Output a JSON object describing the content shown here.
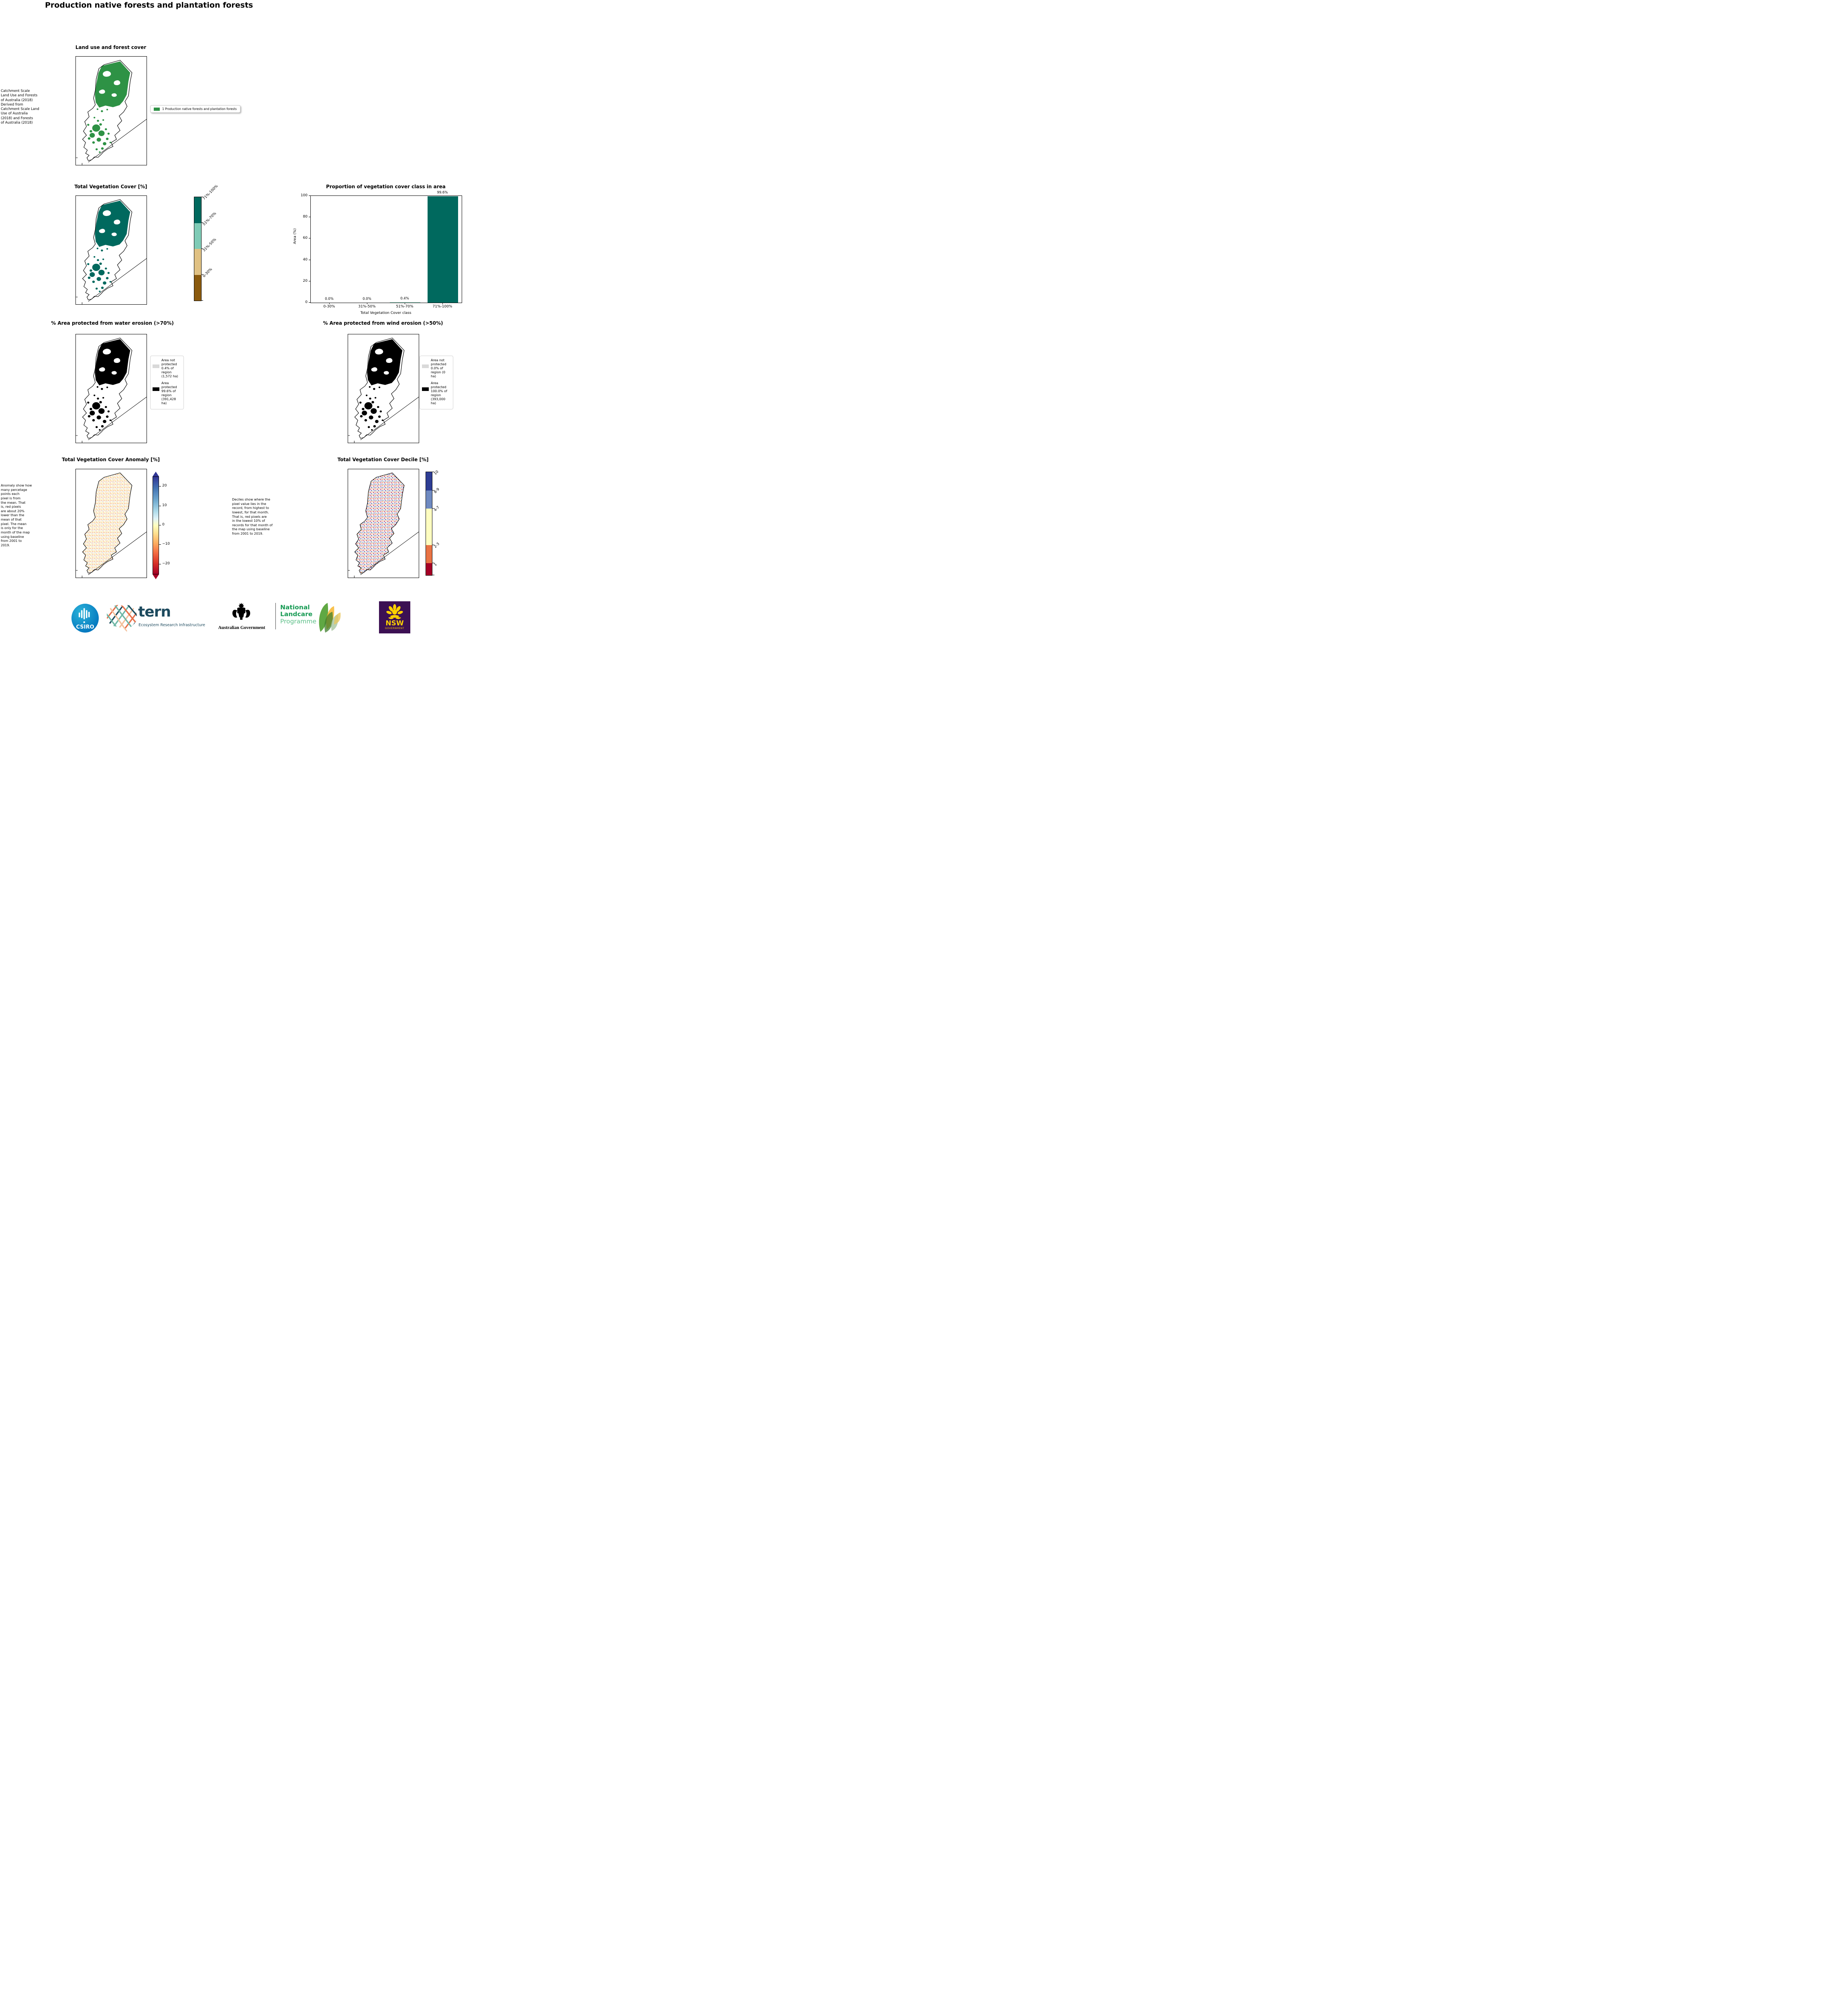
{
  "page": {
    "title": "Production native forests and plantation forests"
  },
  "landuse": {
    "title": "Land use and forest cover",
    "note": " Catchment Scale\nLand Use and Forests\nof Australia (2018)\nDerived from\nCatchment Scale Land\nUse of Australia\n(2018) and Forests\nof Australia (2018)",
    "legend_label": "1 Production native forests and plantation forests",
    "legend_color": "#2e9245"
  },
  "tvc": {
    "title": "Total Vegetation Cover [%]",
    "classes": [
      "71%-100%",
      "51%-70%",
      "31%-50%",
      "0-30%"
    ],
    "class_colors": [
      "#00695e",
      "#7fcbb6",
      "#e0c183",
      "#8a5a0e"
    ]
  },
  "chart_data": {
    "type": "bar",
    "title": "Proportion of vegetation cover class in area",
    "categories": [
      "0-30%",
      "31%-50%",
      "51%-70%",
      "71%-100%"
    ],
    "values": [
      0.0,
      0.0,
      0.4,
      99.6
    ],
    "value_labels": [
      "0.0%",
      "0.0%",
      "0.4%",
      "99.6%"
    ],
    "xlabel": "Total Vegetation Cover class",
    "ylabel": "Area (%)",
    "ylim": [
      0,
      100
    ],
    "yticks": [
      100,
      80,
      60,
      40,
      20,
      0
    ],
    "bar_colors": [
      "#8a5a0e",
      "#e0c183",
      "#7fcbb6",
      "#00695e"
    ],
    "grid": false,
    "legend_position": "none"
  },
  "water": {
    "title": "% Area protected from water erosion (>70%)",
    "legend": [
      {
        "label": "Area not\nprotected\n0.4% of\nregion\n(1,572 ha)",
        "color": "#d9d9d9"
      },
      {
        "label": "Area\nprotected\n99.6% of\nregion\n(391,428\nha)",
        "color": "#000000"
      }
    ]
  },
  "wind": {
    "title": "% Area protected from wind erosion (>50%)",
    "legend": [
      {
        "label": "Area not\nprotected\n0.0% of\nregion (0\nha)",
        "color": "#d9d9d9"
      },
      {
        "label": "Area\nprotected\n100.0% of\nregion\n(393,000\nha)",
        "color": "#000000"
      }
    ]
  },
  "anomaly": {
    "title": "Total Vegetation Cover Anomaly [%]",
    "note": "Anomaly show how\nmany percetage\npoints each\npixel is from\nthe mean. That\nis, red pixels\nare about 20%\nlower than the\nmean of that\npixel. The mean\nis only for the\nmonth of the map\nusing baseline\nfrom 2001 to\n2019.",
    "ticks": [
      "20",
      "10",
      "0",
      "−10",
      "−20"
    ]
  },
  "decile": {
    "title": "Total Vegetation Cover Decile [%]",
    "note": "Deciles show where the\npixel value lies in the\nrecord, from highest to\nlowest, for that month.\nThat is, red pixels are\nin the lowest 10% of\nrecords for that month of\nthe map using baseline\nfrom 2001 to 2019.",
    "labels": [
      "10",
      "8-9",
      "4-7",
      "2-3",
      "1"
    ],
    "colors": [
      "#2e3d94",
      "#6f8ac1",
      "#fefdc0",
      "#e97344",
      "#a50026"
    ]
  },
  "footer": {
    "csiro": "CSIRO",
    "tern": "tern",
    "tern_sub": "Ecosystem Research Infrastructure",
    "ausgov": "Australian Government",
    "nlp_line1": "National",
    "nlp_line2": "Landcare",
    "nlp_line3": "Programme",
    "nsw": "NSW",
    "nsw_sub": "GOVERNMENT"
  }
}
